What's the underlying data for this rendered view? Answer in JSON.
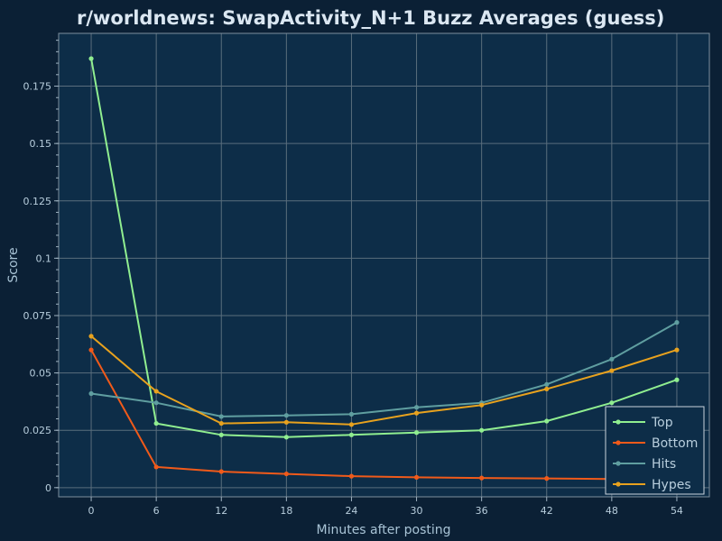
{
  "chart_data": {
    "type": "line",
    "title": "r/worldnews: SwapActivity_N+1 Buzz Averages (guess)",
    "xlabel": "Minutes after posting",
    "ylabel": "Score",
    "x": [
      0,
      6,
      12,
      18,
      24,
      30,
      36,
      42,
      48,
      54
    ],
    "xlim": [
      -3,
      57
    ],
    "ylim": [
      -0.004,
      0.198
    ],
    "xticks": [
      "0",
      "6",
      "12",
      "18",
      "24",
      "30",
      "36",
      "42",
      "48",
      "54"
    ],
    "yticks": [
      "0",
      "0.025",
      "0.05",
      "0.075",
      "0.1",
      "0.125",
      "0.15",
      "0.175"
    ],
    "grid": true,
    "legend_position": "bottom-right",
    "series": [
      {
        "name": "Top",
        "color": "#90ee90",
        "values": [
          0.187,
          0.028,
          0.023,
          0.022,
          0.023,
          0.024,
          0.025,
          0.029,
          0.037,
          0.047
        ]
      },
      {
        "name": "Bottom",
        "color": "#f05a1a",
        "values": [
          0.06,
          0.009,
          0.007,
          0.006,
          0.005,
          0.0045,
          0.0042,
          0.004,
          0.0038,
          0.0036
        ]
      },
      {
        "name": "Hits",
        "color": "#5f9ea0",
        "values": [
          0.041,
          0.037,
          0.031,
          0.0315,
          0.032,
          0.035,
          0.037,
          0.045,
          0.056,
          0.072
        ]
      },
      {
        "name": "Hypes",
        "color": "#e8a21e",
        "values": [
          0.066,
          0.042,
          0.028,
          0.0285,
          0.0275,
          0.0325,
          0.036,
          0.043,
          0.051,
          0.06
        ]
      }
    ]
  }
}
